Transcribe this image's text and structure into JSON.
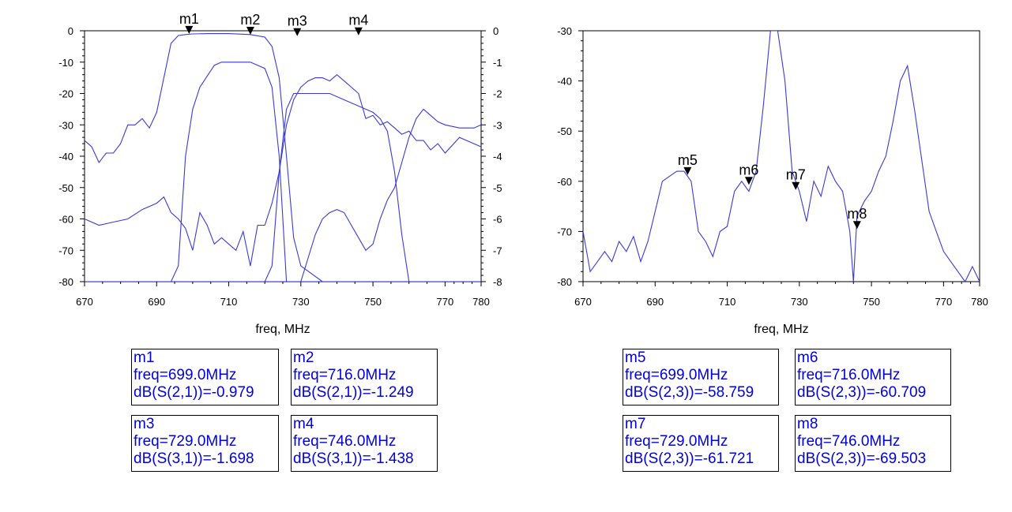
{
  "chart_data": [
    {
      "type": "line",
      "xlabel": "freq, MHz",
      "xlim": [
        670,
        780
      ],
      "xticks": [
        670,
        690,
        710,
        730,
        750,
        770,
        780
      ],
      "ylim": [
        -80,
        0
      ],
      "yticks": [
        0,
        -10,
        -20,
        -30,
        -40,
        -50,
        -60,
        -70,
        -80
      ],
      "y2lim": [
        -8,
        0
      ],
      "y2ticks": [
        0,
        -1,
        -2,
        -3,
        -4,
        -5,
        -6,
        -7,
        -8
      ],
      "series": [
        {
          "axis": "left",
          "x": [
            670,
            672,
            674,
            676,
            678,
            680,
            682,
            684,
            686,
            688,
            690,
            692,
            694,
            696,
            698,
            700,
            704,
            710,
            716,
            720,
            722,
            724,
            726,
            728,
            730,
            736,
            742,
            746,
            750,
            752,
            754,
            756,
            758,
            760,
            762,
            764,
            766,
            770,
            774,
            776,
            780
          ],
          "y": [
            -35,
            -37,
            -42,
            -39,
            -39,
            -36,
            -30,
            -30,
            -28,
            -31,
            -26,
            -15,
            -4,
            -1.5,
            -1.2,
            -1.0,
            -0.9,
            -0.9,
            -1.2,
            -2,
            -5,
            -15,
            -40,
            -66,
            -75,
            -80,
            -80,
            -80,
            -80,
            -80,
            -80,
            -80,
            -80,
            -80,
            -80,
            -80,
            -80,
            -80,
            -80,
            -80,
            -80
          ]
        },
        {
          "axis": "left",
          "x": [
            670,
            680,
            690,
            692,
            694,
            696,
            698,
            700,
            702,
            706,
            708,
            710,
            716,
            720,
            722,
            724,
            726,
            728,
            730,
            736,
            742,
            746,
            750,
            752,
            754,
            756,
            758,
            760,
            762,
            764,
            770,
            774,
            780
          ],
          "y": [
            -80,
            -80,
            -80,
            -80,
            -80,
            -75,
            -40,
            -25,
            -18,
            -11,
            -10,
            -10,
            -10,
            -12,
            -18,
            -40,
            -80,
            -80,
            -80,
            -80,
            -80,
            -80,
            -80,
            -80,
            -80,
            -80,
            -80,
            -80,
            -80,
            -80,
            -80,
            -80,
            -80
          ]
        },
        {
          "axis": "left",
          "x": [
            670,
            680,
            690,
            692,
            694,
            696,
            698,
            700,
            702,
            704,
            706,
            708,
            710,
            712,
            714,
            716,
            720,
            722,
            724,
            726,
            728,
            730,
            734,
            738,
            742,
            746,
            750,
            752,
            754,
            756,
            758,
            760,
            762,
            764,
            766,
            770,
            774,
            776,
            780
          ],
          "y": [
            -80,
            -80,
            -80,
            -80,
            -80,
            -80,
            -80,
            -80,
            -80,
            -80,
            -80,
            -80,
            -80,
            -80,
            -80,
            -80,
            -80,
            -75,
            -45,
            -25,
            -20,
            -20,
            -20,
            -20,
            -22,
            -24,
            -26,
            -28,
            -32,
            -45,
            -65,
            -80,
            -80,
            -80,
            -80,
            -80,
            -80,
            -80,
            -80
          ]
        },
        {
          "axis": "left",
          "x": [
            670,
            674,
            678,
            682,
            686,
            690,
            692,
            694,
            696,
            698,
            700,
            702,
            704,
            706,
            708,
            710,
            712,
            714,
            716,
            718,
            720,
            722,
            724,
            726,
            728,
            730,
            732,
            734,
            736,
            738,
            740,
            742,
            744,
            746,
            748,
            750,
            752,
            754,
            756,
            758,
            760,
            762,
            764,
            766,
            768,
            770,
            774,
            778,
            780
          ],
          "y": [
            -60,
            -62,
            -61,
            -60,
            -57,
            -55,
            -53,
            -58,
            -60,
            -63,
            -70,
            -58,
            -62,
            -68,
            -66,
            -68,
            -70,
            -64,
            -75,
            -62,
            -62,
            -55,
            -45,
            -30,
            -22,
            -18,
            -16,
            -15,
            -15,
            -16,
            -14,
            -16,
            -18,
            -20,
            -28,
            -27,
            -30,
            -29,
            -31,
            -33,
            -32,
            -35,
            -35,
            -38,
            -36,
            -39,
            -34,
            -36,
            -37
          ]
        },
        {
          "axis": "left",
          "x": [
            670,
            680,
            690,
            700,
            710,
            716,
            720,
            722,
            724,
            726,
            728,
            730,
            734,
            736,
            738,
            740,
            742,
            744,
            746,
            748,
            750,
            752,
            754,
            756,
            758,
            760,
            762,
            764,
            766,
            768,
            770,
            774,
            778,
            780
          ],
          "y": [
            -80,
            -80,
            -80,
            -80,
            -80,
            -80,
            -80,
            -80,
            -80,
            -80,
            -80,
            -80,
            -65,
            -60,
            -58,
            -57,
            -58,
            -62,
            -66,
            -70,
            -68,
            -60,
            -54,
            -50,
            -42,
            -34,
            -28,
            -25,
            -27,
            -29,
            -30,
            -31,
            -31,
            -30
          ]
        }
      ]
    },
    {
      "type": "line",
      "xlabel": "freq, MHz",
      "xlim": [
        670,
        780
      ],
      "xticks": [
        670,
        690,
        710,
        730,
        750,
        770,
        780
      ],
      "ylim": [
        -80,
        -30
      ],
      "yticks": [
        -30,
        -40,
        -50,
        -60,
        -70,
        -80
      ],
      "series": [
        {
          "x": [
            670,
            672,
            674,
            676,
            678,
            680,
            682,
            684,
            686,
            688,
            690,
            692,
            694,
            696,
            698,
            700,
            702,
            704,
            706,
            708,
            710,
            712,
            714,
            716,
            718,
            720,
            722,
            724,
            726,
            728,
            730,
            732,
            734,
            736,
            738,
            740,
            742,
            744,
            745,
            746,
            748,
            750,
            752,
            754,
            756,
            758,
            760,
            762,
            764,
            766,
            768,
            770,
            772,
            774,
            776,
            778,
            780
          ],
          "y": [
            -70,
            -78,
            -76,
            -74,
            -76,
            -72,
            -74,
            -71,
            -76,
            -72,
            -66,
            -60,
            -59,
            -58,
            -58,
            -60,
            -70,
            -72,
            -75,
            -70,
            -69,
            -62,
            -60,
            -62,
            -58,
            -45,
            -30,
            -30,
            -40,
            -58,
            -62,
            -68,
            -60,
            -63,
            -57,
            -60,
            -62,
            -70,
            -80,
            -67,
            -64,
            -62,
            -58,
            -55,
            -48,
            -40,
            -37,
            -46,
            -56,
            -66,
            -70,
            -74,
            -76,
            -78,
            -80,
            -77,
            -80
          ]
        }
      ]
    }
  ],
  "plot1": {
    "markers": [
      {
        "label": "m1",
        "x": 699.0,
        "y": -0.979
      },
      {
        "label": "m2",
        "x": 716.0,
        "y": -1.249
      },
      {
        "label": "m3",
        "x": 729.0,
        "y": -1.698
      },
      {
        "label": "m4",
        "x": 746.0,
        "y": -1.438
      }
    ]
  },
  "plot2": {
    "markers": [
      {
        "label": "m5",
        "x": 699.0,
        "y": -58.759
      },
      {
        "label": "m6",
        "x": 716.0,
        "y": -60.709
      },
      {
        "label": "m7",
        "x": 729.0,
        "y": -61.721
      },
      {
        "label": "m8",
        "x": 746.0,
        "y": -69.503
      }
    ]
  },
  "readouts": {
    "m1": {
      "name": "m1",
      "freq": "freq=699.0MHz",
      "value": "dB(S(2,1))=-0.979"
    },
    "m2": {
      "name": "m2",
      "freq": "freq=716.0MHz",
      "value": "dB(S(2,1))=-1.249"
    },
    "m3": {
      "name": "m3",
      "freq": "freq=729.0MHz",
      "value": "dB(S(3,1))=-1.698"
    },
    "m4": {
      "name": "m4",
      "freq": "freq=746.0MHz",
      "value": "dB(S(3,1))=-1.438"
    },
    "m5": {
      "name": "m5",
      "freq": "freq=699.0MHz",
      "value": "dB(S(2,3))=-58.759"
    },
    "m6": {
      "name": "m6",
      "freq": "freq=716.0MHz",
      "value": "dB(S(2,3))=-60.709"
    },
    "m7": {
      "name": "m7",
      "freq": "freq=729.0MHz",
      "value": "dB(S(2,3))=-61.721"
    },
    "m8": {
      "name": "m8",
      "freq": "freq=746.0MHz",
      "value": "dB(S(2,3))=-69.503"
    }
  },
  "colors": {
    "trace": "#3a3ad8",
    "readout_text": "#0000e0",
    "axis": "#000000",
    "xlabel2": "#0000e0"
  }
}
